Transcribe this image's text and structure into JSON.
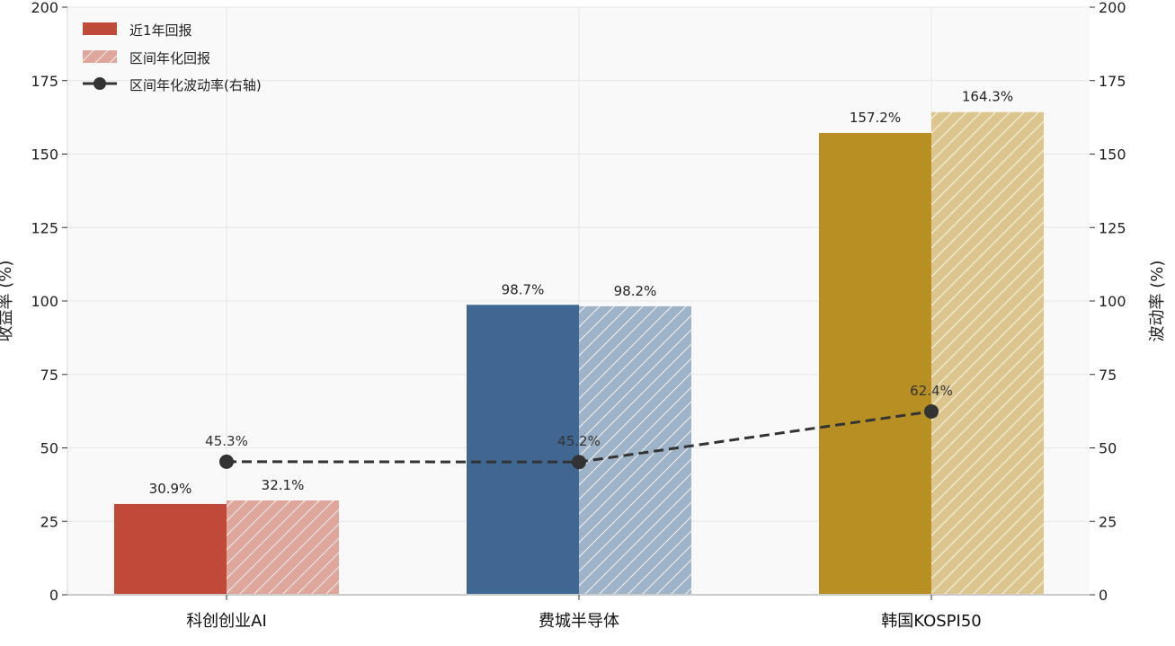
{
  "chart_data": {
    "type": "bar",
    "categories": [
      "科创创业AI",
      "费城半导体",
      "韩国KOSPI50"
    ],
    "series": [
      {
        "name": "近1年回报",
        "values": [
          30.9,
          98.7,
          157.2
        ],
        "labels": [
          "30.9%",
          "98.7%",
          "157.2%"
        ]
      },
      {
        "name": "区间年化回报",
        "values": [
          32.1,
          98.2,
          164.3
        ],
        "labels": [
          "32.1%",
          "98.2%",
          "164.3%"
        ]
      },
      {
        "name": "区间年化波动率(右轴)",
        "type": "line",
        "axis": "right",
        "values": [
          45.3,
          45.2,
          62.4
        ],
        "labels": [
          "45.3%",
          "45.2%",
          "62.4%"
        ]
      }
    ],
    "bar_colors": {
      "solid": [
        "#c0493a",
        "#3f6791",
        "#b88f23"
      ],
      "hatched": [
        "#e0a69c",
        "#9fb3c8",
        "#dcc68e"
      ]
    },
    "line_color": "#333333",
    "ylabel_left": "收益率 (%)",
    "ylabel_right": "波动率 (%)",
    "ylim_left": [
      0,
      200
    ],
    "ylim_right": [
      0,
      200
    ],
    "yticks": [
      "0",
      "25",
      "50",
      "75",
      "100",
      "125",
      "150",
      "175",
      "200"
    ],
    "grid": true,
    "legend_position": "top-left"
  }
}
